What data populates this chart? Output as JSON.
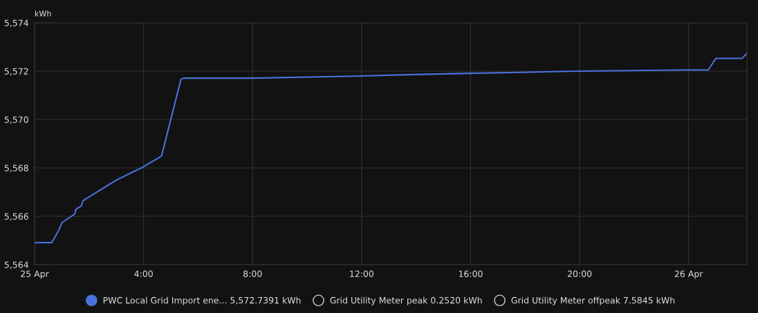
{
  "chart_data": {
    "type": "line",
    "ylabel": "kWh",
    "xlim": [
      0,
      26.14
    ],
    "xticks": [
      {
        "value": 0,
        "label": "25 Apr"
      },
      {
        "value": 4,
        "label": "4:00"
      },
      {
        "value": 8,
        "label": "8:00"
      },
      {
        "value": 12,
        "label": "12:00"
      },
      {
        "value": 16,
        "label": "16:00"
      },
      {
        "value": 20,
        "label": "20:00"
      },
      {
        "value": 24,
        "label": "26 Apr"
      }
    ],
    "ylim": [
      5564,
      5574
    ],
    "yticks": [
      {
        "value": 5564,
        "label": "5,564"
      },
      {
        "value": 5566,
        "label": "5,566"
      },
      {
        "value": 5568,
        "label": "5,568"
      },
      {
        "value": 5570,
        "label": "5,570"
      },
      {
        "value": 5572,
        "label": "5,572"
      },
      {
        "value": 5574,
        "label": "5,574"
      }
    ],
    "grid": true,
    "legend": "bottom",
    "marker": "none",
    "line_style": "solid",
    "series": [
      {
        "name": "PWC Local Grid Import ene... 5,572.7391 kWh",
        "color": "#4a72dc",
        "x": [
          0,
          0.63,
          0.89,
          1.01,
          1.09,
          1.47,
          1.52,
          1.72,
          1.77,
          1.87,
          2.99,
          3.97,
          4.66,
          5.37,
          5.47,
          7.97,
          11.95,
          13.92,
          15.95,
          19.9,
          23.96,
          24.72,
          25.0,
          25.96,
          26.14
        ],
        "values": [
          5564.91,
          5564.91,
          5565.43,
          5565.74,
          5565.8,
          5566.09,
          5566.29,
          5566.43,
          5566.63,
          5566.71,
          5567.49,
          5568.03,
          5568.49,
          5571.66,
          5571.71,
          5571.71,
          5571.8,
          5571.86,
          5571.91,
          5572.0,
          5572.05,
          5572.05,
          5572.53,
          5572.53,
          5572.74
        ]
      },
      {
        "name": "Grid Utility Meter peak 0.2520 kWh",
        "color": "#cccccc"
      },
      {
        "name": "Grid Utility Meter offpeak 7.5845 kWh",
        "color": "#cccccc"
      }
    ]
  }
}
